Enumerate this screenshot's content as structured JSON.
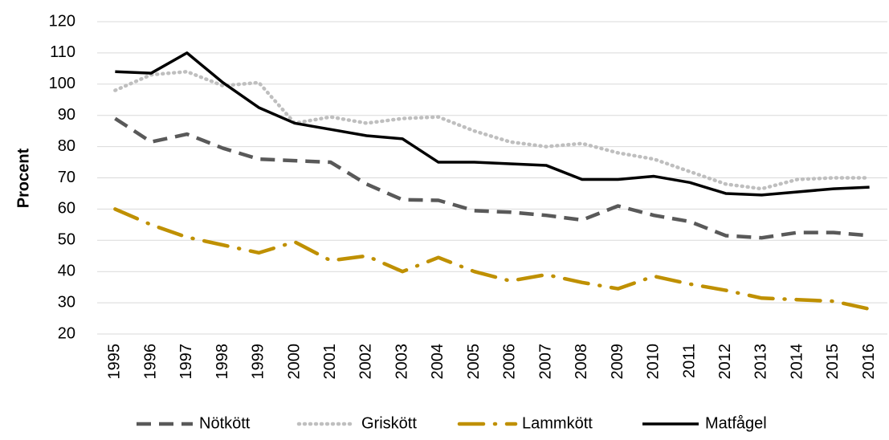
{
  "chart_data": {
    "type": "line",
    "y_label": "Procent",
    "categories": [
      "1995",
      "1996",
      "1997",
      "1998",
      "1999",
      "2000",
      "2001",
      "2002",
      "2003",
      "2004",
      "2005",
      "2006",
      "2007",
      "2008",
      "2009",
      "2010",
      "2011",
      "2012",
      "2013",
      "2014",
      "2015",
      "2016"
    ],
    "series": [
      {
        "name": "Nötkött",
        "color": "#595959",
        "dash": "dashed",
        "values": [
          89,
          81.5,
          84,
          79.5,
          76,
          75.5,
          75,
          68,
          63,
          62.8,
          59.5,
          59,
          58,
          56.5,
          61,
          58,
          56,
          51.5,
          50.8,
          52.5,
          52.5,
          51.5
        ]
      },
      {
        "name": "Griskött",
        "color": "#bfbfbf",
        "dash": "dotted",
        "values": [
          98,
          103,
          104,
          99.5,
          100.5,
          87.5,
          89.5,
          87.5,
          89,
          89.5,
          85,
          81.5,
          80,
          81,
          78,
          76,
          72,
          68,
          66.5,
          69.5,
          70,
          70
        ]
      },
      {
        "name": "Lammkött",
        "color": "#bf9000",
        "dash": "dashdot",
        "values": [
          60,
          55,
          51,
          48.5,
          46,
          49.5,
          43.5,
          45,
          40,
          44.5,
          40,
          37,
          39,
          36.5,
          34.5,
          38.5,
          36,
          34,
          31.5,
          31,
          30.5,
          28
        ]
      },
      {
        "name": "Matfågel",
        "color": "#000000",
        "dash": "solid",
        "values": [
          104,
          103.5,
          110,
          100.5,
          92.5,
          87.5,
          85.5,
          83.5,
          82.5,
          75,
          75,
          74.5,
          74,
          69.5,
          69.5,
          70.5,
          68.5,
          65,
          64.5,
          65.5,
          66.5,
          67
        ]
      }
    ],
    "ylim": [
      20,
      120
    ],
    "yticks": [
      20,
      30,
      40,
      50,
      60,
      70,
      80,
      90,
      100,
      110,
      120
    ],
    "grid": true,
    "legend": "bottom"
  }
}
